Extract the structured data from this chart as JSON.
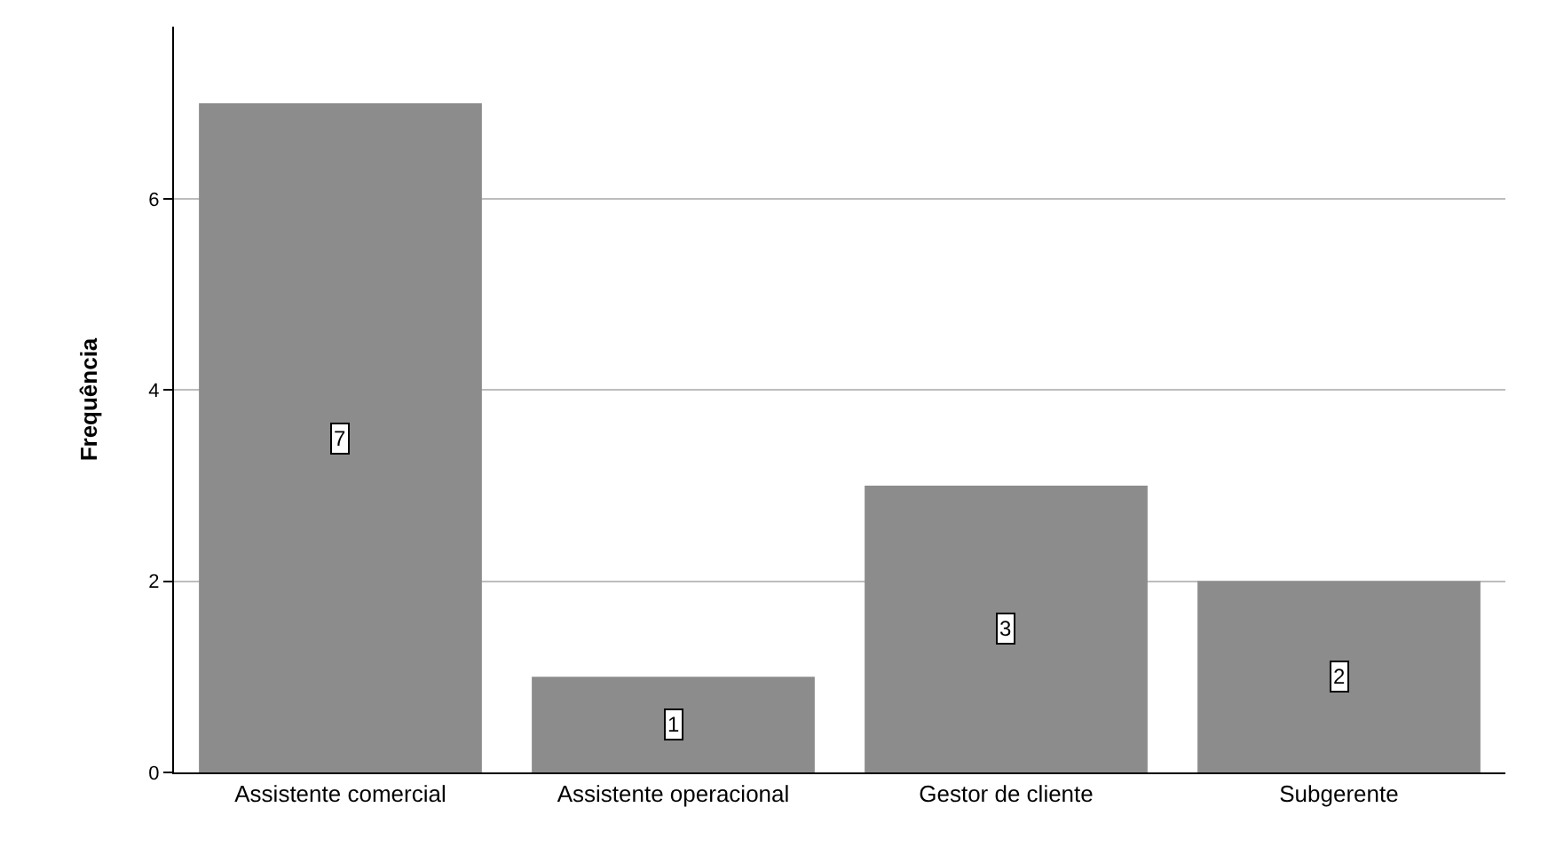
{
  "chart_data": {
    "type": "bar",
    "ylabel": "Frequência",
    "categories": [
      "Assistente comercial",
      "Assistente operacional",
      "Gestor de cliente",
      "Subgerente"
    ],
    "values": [
      7,
      1,
      3,
      2
    ],
    "color": "#8c8c8c",
    "ylim": [
      0,
      7.8
    ],
    "yticks": [
      0,
      2,
      4,
      6
    ],
    "grid": "y",
    "data_labels": true
  }
}
